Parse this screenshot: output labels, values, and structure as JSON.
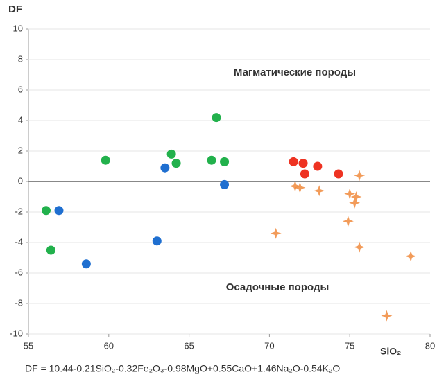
{
  "chart_data": {
    "type": "scatter",
    "y_label": "DF",
    "x_label": "SiO₂",
    "annotations": [
      "Магматические породы",
      "Осадочные породы"
    ],
    "formula": "DF = 10.44-0.21SiO₂-0.32Fe₂O₃-0.98MgO+0.55CaO+1.46Na₂O-0.54K₂O",
    "xlim": [
      55,
      80
    ],
    "xticks": [
      55,
      60,
      65,
      70,
      75,
      80
    ],
    "ylim": [
      -10,
      10
    ],
    "yticks": [
      -10,
      -8,
      -6,
      -4,
      -2,
      0,
      2,
      4,
      6,
      8,
      10
    ],
    "grid": true,
    "series": [
      {
        "color": "#22b14c",
        "marker": "circle",
        "x": [
          56.1,
          56.4,
          59.8,
          63.9,
          64.2,
          66.4,
          66.7,
          67.2
        ],
        "values": [
          -1.9,
          -4.5,
          1.4,
          1.8,
          1.2,
          1.4,
          4.2,
          1.3
        ]
      },
      {
        "color": "#1f6fd0",
        "marker": "circle",
        "x": [
          56.9,
          58.6,
          63.0,
          63.5,
          67.2
        ],
        "values": [
          -1.9,
          -5.4,
          -3.9,
          0.9,
          -0.2
        ]
      },
      {
        "color": "#ee3322",
        "marker": "circle",
        "x": [
          71.5,
          72.1,
          72.2,
          73.0,
          74.3
        ],
        "values": [
          1.3,
          1.2,
          0.5,
          1.0,
          0.5
        ]
      },
      {
        "color": "#f08a3c",
        "marker": "star",
        "x": [
          70.4,
          71.6,
          71.9,
          73.1,
          75.6,
          75.0,
          75.3,
          75.4,
          74.9,
          75.6,
          78.8,
          77.3
        ],
        "values": [
          -3.4,
          -0.3,
          -0.4,
          -0.6,
          0.4,
          -0.8,
          -1.4,
          -1.0,
          -2.6,
          -4.3,
          -4.9,
          -8.8
        ]
      }
    ]
  }
}
